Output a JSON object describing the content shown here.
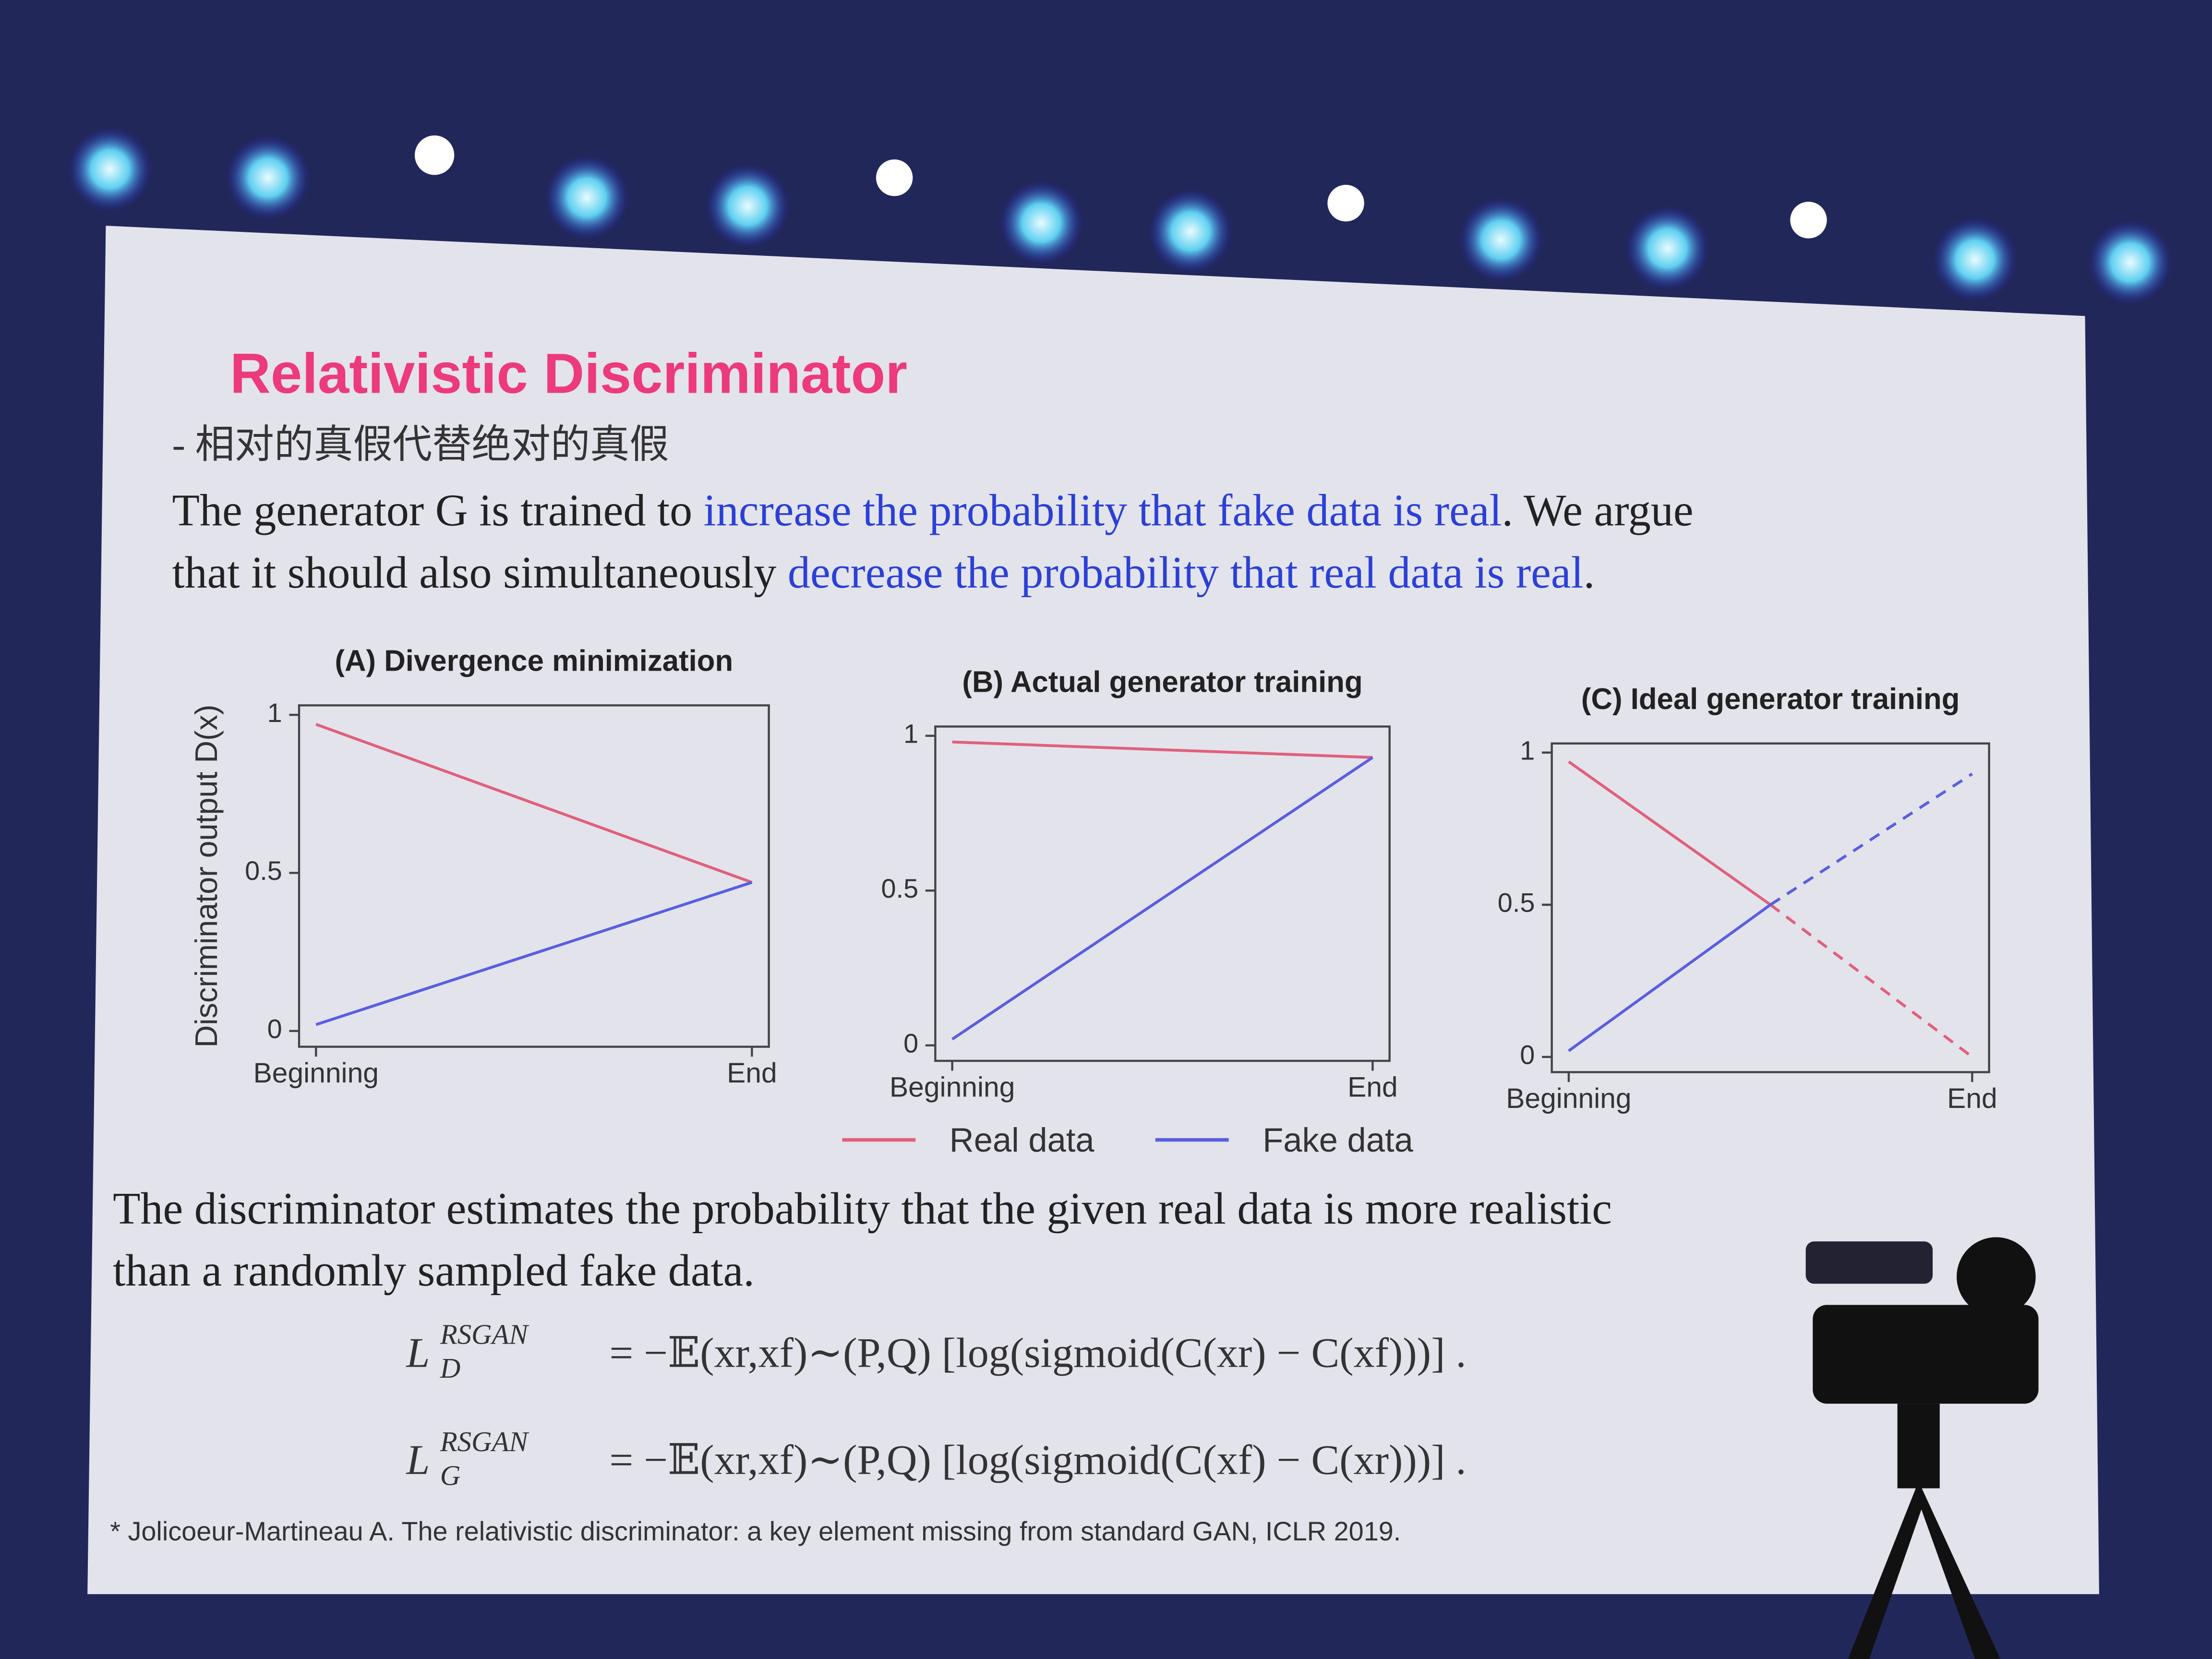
{
  "slide": {
    "title": "Relativistic Discriminator",
    "subtitle": "- 相对的真假代替绝对的真假",
    "paragraph1": [
      [
        {
          "text": "The generator G is trained to "
        },
        {
          "text": "increase the probability that fake data is real",
          "color": "#2b3fd8"
        },
        {
          "text": ". We argue"
        }
      ],
      [
        {
          "text": "that it should also simultaneously "
        },
        {
          "text": "decrease the probability that real data is real",
          "color": "#2b3fd8"
        },
        {
          "text": "."
        }
      ]
    ],
    "paragraph2": [
      "The discriminator estimates the probability that the given real data is more realistic",
      "than a randomly sampled fake data."
    ],
    "formulas": [
      {
        "symbol": "L",
        "sub": "D",
        "sup": "RSGAN",
        "rhs": "= −𝔼(xr,xf)∼(P,Q) [log(sigmoid(C(xr) − C(xf)))] ."
      },
      {
        "symbol": "L",
        "sub": "G",
        "sup": "RSGAN",
        "rhs": "= −𝔼(xr,xf)∼(P,Q) [log(sigmoid(C(xf) − C(xr)))] ."
      }
    ],
    "footnote": "* Jolicoeur-Martineau A. The relativistic discriminator: a key element missing from standard GAN, ICLR 2019.",
    "legend": [
      {
        "name": "Real data",
        "color": "#e0607a"
      },
      {
        "name": "Fake data",
        "color": "#5a5ee0"
      }
    ]
  },
  "chart_data": [
    {
      "type": "line",
      "title": "(A) Divergence minimization",
      "ylabel": "Discriminator output D(x)",
      "categories": [
        "Beginning",
        "End"
      ],
      "series": [
        {
          "color": "#e0607a",
          "values": [
            0.97,
            0.47
          ]
        },
        {
          "color": "#5a5ee0",
          "values": [
            0.02,
            0.47
          ]
        }
      ],
      "ylim": [
        -0.05,
        1.03
      ],
      "yticks": [
        0,
        0.5,
        1
      ]
    },
    {
      "type": "line",
      "title": "(B) Actual generator training",
      "categories": [
        "Beginning",
        "End"
      ],
      "series": [
        {
          "color": "#e0607a",
          "values": [
            0.98,
            0.93
          ]
        },
        {
          "color": "#5a5ee0",
          "values": [
            0.02,
            0.93
          ]
        }
      ],
      "ylim": [
        -0.05,
        1.03
      ],
      "yticks": [
        0,
        0.5,
        1
      ]
    },
    {
      "type": "line",
      "title": "(C) Ideal generator training",
      "categories": [
        "Beginning",
        null,
        "End"
      ],
      "series": [
        {
          "color": "#e0607a",
          "values": [
            0.97,
            0.5,
            0
          ],
          "segment_styles": [
            "solid",
            "dashed"
          ]
        },
        {
          "color": "#5a5ee0",
          "values": [
            0.02,
            0.5,
            0.93
          ],
          "segment_styles": [
            "solid",
            "dashed"
          ]
        }
      ],
      "ylim": [
        -0.05,
        1.03
      ],
      "yticks": [
        0,
        0.5,
        1
      ]
    }
  ]
}
